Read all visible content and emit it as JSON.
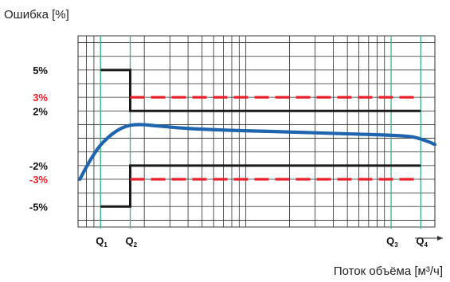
{
  "chart_data": {
    "type": "line",
    "ylabel": "Ошибка [%]",
    "xlabel": "Поток объёма [м³/ч]",
    "x_scale": "log",
    "ylim": [
      -6.5,
      7.5
    ],
    "yticks": [
      {
        "value": 5,
        "label": "5%",
        "color": "#111111"
      },
      {
        "value": 3,
        "label": "3%",
        "color": "#e8202a"
      },
      {
        "value": 2,
        "label": "2%",
        "color": "#111111"
      },
      {
        "value": -2,
        "label": "-2%",
        "color": "#111111"
      },
      {
        "value": -3,
        "label": "-3%",
        "color": "#e8202a"
      },
      {
        "value": -5,
        "label": "-5%",
        "color": "#111111"
      }
    ],
    "flow_points": [
      {
        "name": "Q1",
        "letter": "Q",
        "sub": "1",
        "x": 1
      },
      {
        "name": "Q2",
        "letter": "Q",
        "sub": "2",
        "x": 1.6
      },
      {
        "name": "Q3",
        "letter": "Q",
        "sub": "3",
        "x": 100
      },
      {
        "name": "Q4",
        "letter": "Q",
        "sub": "4",
        "x": 160
      }
    ],
    "series": [
      {
        "role": "black limit (upper)",
        "color": "#1a1a1a",
        "style": "solid",
        "points": [
          [
            1,
            5
          ],
          [
            1.6,
            5
          ],
          [
            1.6,
            2
          ],
          [
            160,
            2
          ]
        ]
      },
      {
        "role": "black limit (lower)",
        "color": "#1a1a1a",
        "style": "solid",
        "points": [
          [
            1,
            -5
          ],
          [
            1.6,
            -5
          ],
          [
            1.6,
            -2
          ],
          [
            160,
            -2
          ]
        ]
      },
      {
        "role": "red dashed limit (upper)",
        "color": "#e8202a",
        "style": "dashed",
        "points": [
          [
            1.6,
            3
          ],
          [
            160,
            3
          ]
        ]
      },
      {
        "role": "red dashed limit (lower)",
        "color": "#e8202a",
        "style": "dashed",
        "points": [
          [
            1.6,
            -3
          ],
          [
            160,
            -3
          ]
        ]
      },
      {
        "role": "error curve",
        "color": "#1f64ae",
        "style": "solid",
        "points": [
          [
            0.72,
            -3.0
          ],
          [
            0.85,
            -1.6
          ],
          [
            1.0,
            -0.5
          ],
          [
            1.2,
            0.3
          ],
          [
            1.4,
            0.75
          ],
          [
            1.6,
            0.95
          ],
          [
            1.9,
            1.0
          ],
          [
            2.5,
            0.9
          ],
          [
            4,
            0.72
          ],
          [
            8,
            0.58
          ],
          [
            15,
            0.5
          ],
          [
            30,
            0.4
          ],
          [
            60,
            0.3
          ],
          [
            100,
            0.22
          ],
          [
            140,
            0.1
          ],
          [
            175,
            -0.2
          ],
          [
            200,
            -0.45
          ]
        ]
      }
    ],
    "grid": true
  }
}
